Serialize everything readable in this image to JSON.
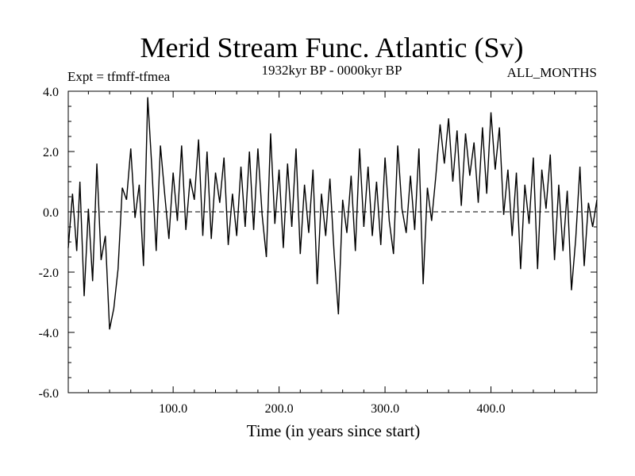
{
  "chart_data": {
    "type": "line",
    "title": "Merid Stream Func. Atlantic (Sv)",
    "subtitle_left": "Expt = tfmff-tfmea",
    "subtitle_center": "1932kyr BP - 0000kyr BP",
    "subtitle_right": "ALL_MONTHS",
    "xlabel": "Time (in years since start)",
    "ylabel": "",
    "xlim": [
      1,
      500
    ],
    "ylim": [
      -6.0,
      4.0
    ],
    "x_ticks": [
      100,
      200,
      300,
      400
    ],
    "x_tick_labels": [
      "100.0",
      "200.0",
      "300.0",
      "400.0"
    ],
    "y_ticks": [
      4.0,
      2.0,
      0.0,
      -2.0,
      -4.0,
      -6.0
    ],
    "y_tick_labels": [
      "4.0",
      "2.0",
      "0.0",
      "-2.0",
      "-4.0",
      "-6.0"
    ],
    "zero_line": true,
    "grid": false,
    "series": [
      {
        "name": "tfmff-tfmea",
        "x": [
          1,
          5,
          9,
          12,
          16,
          20,
          24,
          28,
          32,
          36,
          40,
          44,
          48,
          52,
          56,
          60,
          64,
          68,
          72,
          76,
          80,
          84,
          88,
          92,
          96,
          100,
          104,
          108,
          112,
          116,
          120,
          124,
          128,
          132,
          136,
          140,
          144,
          148,
          152,
          156,
          160,
          164,
          168,
          172,
          176,
          180,
          184,
          188,
          192,
          196,
          200,
          204,
          208,
          212,
          216,
          220,
          224,
          228,
          232,
          236,
          240,
          244,
          248,
          252,
          256,
          260,
          264,
          268,
          272,
          276,
          280,
          284,
          288,
          292,
          296,
          300,
          304,
          308,
          312,
          316,
          320,
          324,
          328,
          332,
          336,
          340,
          344,
          348,
          352,
          356,
          360,
          364,
          368,
          372,
          376,
          380,
          384,
          388,
          392,
          396,
          400,
          404,
          408,
          412,
          416,
          420,
          424,
          428,
          432,
          436,
          440,
          444,
          448,
          452,
          456,
          460,
          464,
          468,
          472,
          476,
          480,
          484,
          488,
          492,
          496,
          500
        ],
        "values": [
          -1.2,
          0.6,
          -1.3,
          1.0,
          -2.8,
          0.1,
          -2.3,
          1.6,
          -1.6,
          -0.8,
          -3.9,
          -3.2,
          -1.9,
          0.8,
          0.4,
          2.1,
          -0.2,
          0.9,
          -1.8,
          3.8,
          1.4,
          -1.3,
          2.2,
          0.6,
          -0.9,
          1.3,
          -0.3,
          2.2,
          -0.6,
          1.1,
          0.4,
          2.4,
          -0.8,
          2.0,
          -0.9,
          1.3,
          0.3,
          1.8,
          -1.1,
          0.6,
          -0.8,
          1.5,
          -0.5,
          2.0,
          -0.6,
          2.1,
          -0.1,
          -1.5,
          2.6,
          -0.4,
          1.4,
          -1.2,
          1.6,
          -0.5,
          2.1,
          -1.4,
          0.9,
          -0.7,
          1.4,
          -2.4,
          0.6,
          -0.8,
          1.1,
          -1.4,
          -3.4,
          0.4,
          -0.7,
          1.2,
          -1.3,
          2.1,
          -0.5,
          1.5,
          -0.8,
          1.0,
          -1.1,
          1.8,
          -0.3,
          -1.4,
          2.2,
          0.1,
          -0.7,
          1.2,
          -0.6,
          2.1,
          -2.4,
          0.8,
          -0.3,
          1.2,
          2.9,
          1.6,
          3.1,
          1.0,
          2.7,
          0.2,
          2.6,
          1.2,
          2.3,
          0.3,
          2.8,
          0.6,
          3.3,
          1.4,
          2.8,
          -0.1,
          1.4,
          -0.8,
          1.3,
          -1.9,
          0.9,
          -0.4,
          1.8,
          -1.9,
          1.4,
          0.1,
          1.9,
          -1.6,
          0.9,
          -1.3,
          0.7,
          -2.6,
          -0.9,
          1.5,
          -1.8,
          0.3,
          -0.5,
          0.4
        ]
      }
    ]
  }
}
